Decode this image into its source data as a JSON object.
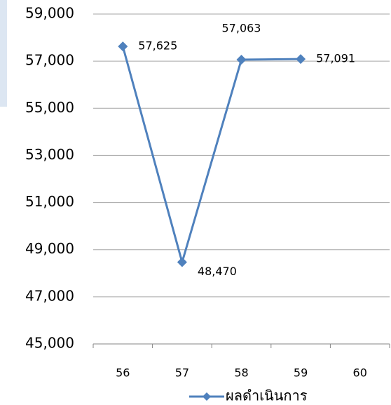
{
  "chart_data": {
    "type": "line",
    "categories": [
      "56",
      "57",
      "58",
      "59",
      "60"
    ],
    "series": [
      {
        "name": "ผลดำเนินการ",
        "color": "#4f81bd",
        "values": [
          57625,
          48470,
          57063,
          57091,
          null
        ],
        "value_labels": [
          "57,625",
          "48,470",
          "57,063",
          "57,091",
          null
        ]
      }
    ],
    "ylim": [
      45000,
      59000
    ],
    "yticks": [
      {
        "value": 45000,
        "label": "45,000"
      },
      {
        "value": 47000,
        "label": "47,000"
      },
      {
        "value": 49000,
        "label": "49,000"
      },
      {
        "value": 51000,
        "label": "51,000"
      },
      {
        "value": 53000,
        "label": "53,000"
      },
      {
        "value": 55000,
        "label": "55,000"
      },
      {
        "value": 57000,
        "label": "57,000"
      },
      {
        "value": 59000,
        "label": "59,000"
      }
    ],
    "grid": true,
    "legend": "bottom"
  }
}
